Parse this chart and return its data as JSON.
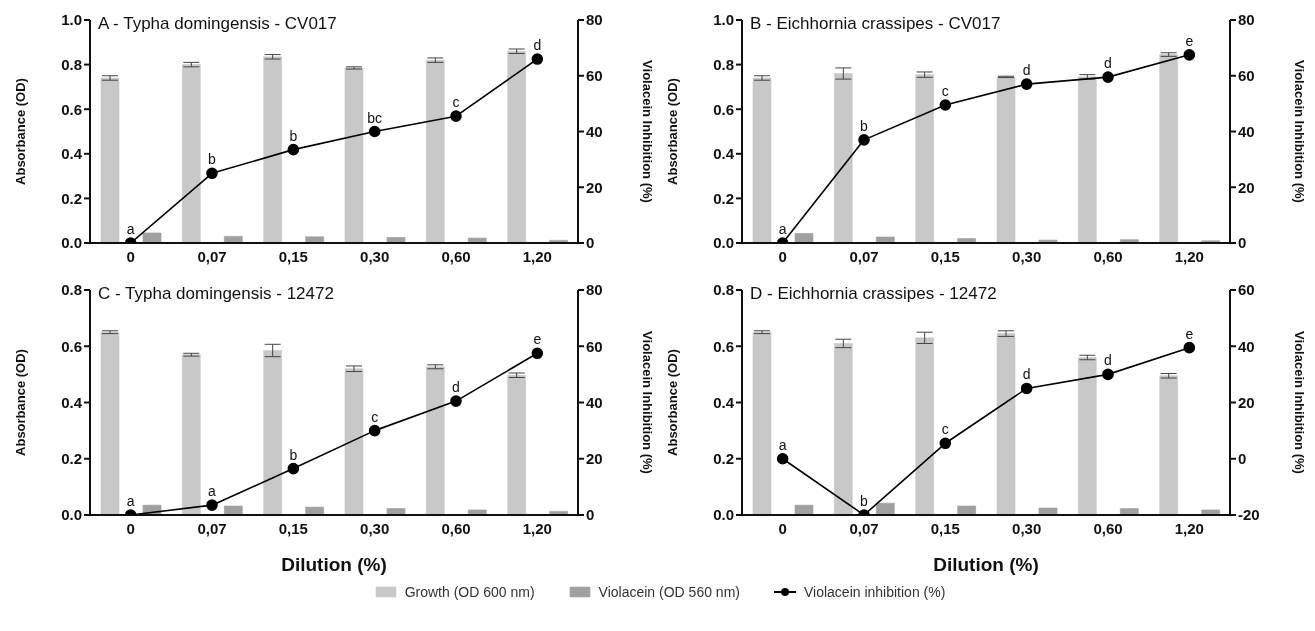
{
  "chart_data": [
    {
      "type": "bar",
      "title": "A - Typha domingensis - CV017",
      "ylabel": "Absorbance (OD)",
      "y2label": "Violacein Inhibition (%)",
      "categories": [
        "0",
        "0,07",
        "0,15",
        "0,30",
        "0,60",
        "1,20"
      ],
      "series": [
        {
          "name": "Growth (OD 600 nm)",
          "color": "#c8c8c8",
          "values": [
            0.74,
            0.8,
            0.835,
            0.785,
            0.82,
            0.86
          ],
          "errors": [
            0.01,
            0.01,
            0.01,
            0.005,
            0.01,
            0.01
          ]
        },
        {
          "name": "Violacein (OD 560 nm)",
          "color": "#a0a0a0",
          "values": [
            0.045,
            0.03,
            0.028,
            0.025,
            0.022,
            0.012
          ]
        },
        {
          "name": "Violacein inhibition (%)",
          "type": "line",
          "axis": "y2",
          "color": "#000000",
          "values": [
            0,
            25,
            33.5,
            40,
            45.5,
            66
          ]
        }
      ],
      "ylim": [
        0,
        1
      ],
      "yticks": [
        {
          "value": 0,
          "label": "0.0"
        },
        {
          "value": 0.2,
          "label": "0.2"
        },
        {
          "value": 0.4,
          "label": "0.4"
        },
        {
          "value": 0.6,
          "label": "0.6"
        },
        {
          "value": 0.8,
          "label": "0.8"
        },
        {
          "value": 1,
          "label": "1.0"
        }
      ],
      "y2lim": [
        0,
        80
      ],
      "y2ticks": [
        0,
        20,
        40,
        60,
        80
      ],
      "marker": "circle",
      "line_style": "solid",
      "legend": "bottom",
      "annotations": [
        "a",
        "b",
        "b",
        "bc",
        "c",
        "d"
      ]
    },
    {
      "type": "bar",
      "title": "B - Eichhornia crassipes - CV017",
      "ylabel": "Absorbance (OD)",
      "y2label": "Violacein Inhibition (%)",
      "categories": [
        "0",
        "0,07",
        "0,15",
        "0,30",
        "0,60",
        "1,20"
      ],
      "series": [
        {
          "color": "#c8c8c8",
          "values": [
            0.74,
            0.76,
            0.755,
            0.745,
            0.745,
            0.845
          ],
          "errors": [
            0.01,
            0.025,
            0.012,
            0.003,
            0.01,
            0.008
          ]
        },
        {
          "color": "#a0a0a0",
          "values": [
            0.043,
            0.027,
            0.02,
            0.013,
            0.015,
            0.01
          ]
        },
        {
          "type": "line",
          "axis": "y2",
          "color": "#000000",
          "values": [
            0,
            37,
            49.5,
            57,
            59.5,
            67.5
          ]
        }
      ],
      "ylim": [
        0,
        1
      ],
      "yticks": [
        {
          "value": 0,
          "label": "0.0"
        },
        {
          "value": 0.2,
          "label": "0.2"
        },
        {
          "value": 0.4,
          "label": "0.4"
        },
        {
          "value": 0.6,
          "label": "0.6"
        },
        {
          "value": 0.8,
          "label": "0.8"
        },
        {
          "value": 1,
          "label": "1.0"
        }
      ],
      "y2lim": [
        0,
        80
      ],
      "y2ticks": [
        0,
        20,
        40,
        60,
        80
      ],
      "marker": "circle",
      "line_style": "solid",
      "annotations": [
        "a",
        "b",
        "c",
        "d",
        "d",
        "e"
      ]
    },
    {
      "type": "bar",
      "title": "C - Typha domingensis - 12472",
      "xlabel": "Dilution (%)",
      "ylabel": "Absorbance (OD)",
      "y2label": "Violacein Inhibition (%)",
      "categories": [
        "0",
        "0,07",
        "0,15",
        "0,30",
        "0,60",
        "1,20"
      ],
      "series": [
        {
          "color": "#c8c8c8",
          "values": [
            0.65,
            0.57,
            0.585,
            0.52,
            0.527,
            0.497
          ],
          "errors": [
            0.005,
            0.005,
            0.022,
            0.01,
            0.007,
            0.008
          ]
        },
        {
          "color": "#a0a0a0",
          "values": [
            0.035,
            0.032,
            0.028,
            0.023,
            0.018,
            0.013
          ]
        },
        {
          "type": "line",
          "axis": "y2",
          "color": "#000000",
          "values": [
            0,
            3.5,
            16.5,
            30,
            40.5,
            57.5
          ]
        }
      ],
      "ylim": [
        0,
        0.8
      ],
      "yticks": [
        {
          "value": 0,
          "label": "0.0"
        },
        {
          "value": 0.2,
          "label": "0.2"
        },
        {
          "value": 0.4,
          "label": "0.4"
        },
        {
          "value": 0.6,
          "label": "0.6"
        },
        {
          "value": 0.8,
          "label": "0.8"
        }
      ],
      "y2lim": [
        0,
        80
      ],
      "y2ticks": [
        0,
        20,
        40,
        60,
        80
      ],
      "marker": "circle",
      "line_style": "solid",
      "annotations": [
        "a",
        "a",
        "b",
        "c",
        "d",
        "e"
      ]
    },
    {
      "type": "bar",
      "title": "D - Eichhornia crassipes - 12472",
      "xlabel": "Dilution (%)",
      "ylabel": "Absorbance (OD)",
      "y2label": "Violacein Inhibition (%)",
      "categories": [
        "0",
        "0,07",
        "0,15",
        "0,30",
        "0,60",
        "1,20"
      ],
      "series": [
        {
          "color": "#c8c8c8",
          "values": [
            0.65,
            0.61,
            0.63,
            0.645,
            0.56,
            0.495
          ],
          "errors": [
            0.005,
            0.015,
            0.02,
            0.01,
            0.008,
            0.008
          ]
        },
        {
          "color": "#a0a0a0",
          "values": [
            0.035,
            0.042,
            0.032,
            0.025,
            0.023,
            0.018
          ]
        },
        {
          "type": "line",
          "axis": "y2",
          "color": "#000000",
          "values": [
            0,
            -20,
            5.5,
            25,
            30,
            39.5
          ]
        }
      ],
      "ylim": [
        0,
        0.8
      ],
      "yticks": [
        {
          "value": 0,
          "label": "0.0"
        },
        {
          "value": 0.2,
          "label": "0.2"
        },
        {
          "value": 0.4,
          "label": "0.4"
        },
        {
          "value": 0.6,
          "label": "0.6"
        },
        {
          "value": 0.8,
          "label": "0.8"
        }
      ],
      "y2lim": [
        -20,
        60
      ],
      "y2ticks": [
        -20,
        0,
        20,
        40,
        60
      ],
      "marker": "circle",
      "line_style": "solid",
      "annotations": [
        "a",
        "b",
        "c",
        "d",
        "d",
        "e"
      ]
    }
  ]
}
